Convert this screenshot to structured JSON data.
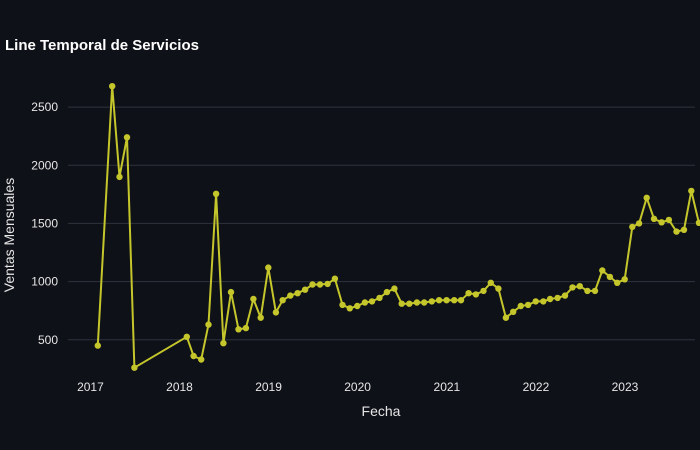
{
  "colors": {
    "background": "#0e1118",
    "text": "#ffffff",
    "tick_text": "#e6e6e6",
    "grid": "#2e333d",
    "series": "#c4c62b"
  },
  "chart_data": {
    "type": "line",
    "title": "Line Temporal de Servicios",
    "xlabel": "Fecha",
    "ylabel": "Ventas Mensuales",
    "grid": true,
    "x_ticks": [
      "2017",
      "2018",
      "2019",
      "2020",
      "2021",
      "2022",
      "2023"
    ],
    "y_ticks": [
      500,
      1000,
      1500,
      2000,
      2500
    ],
    "xlim": [
      "2016-10-01",
      "2023-10-15"
    ],
    "ylim": [
      240,
      2690
    ],
    "series": [
      {
        "points": [
          [
            "2017-01-31",
            450
          ],
          [
            "2017-03-31",
            2680
          ],
          [
            "2017-04-30",
            1900
          ],
          [
            "2017-05-31",
            2240
          ],
          [
            "2017-06-30",
            260
          ],
          [
            "2018-01-31",
            525
          ],
          [
            "2018-02-28",
            360
          ],
          [
            "2018-03-31",
            330
          ],
          [
            "2018-04-30",
            630
          ],
          [
            "2018-05-31",
            1755
          ],
          [
            "2018-06-30",
            470
          ],
          [
            "2018-07-31",
            910
          ],
          [
            "2018-08-31",
            590
          ],
          [
            "2018-09-30",
            600
          ],
          [
            "2018-10-31",
            850
          ],
          [
            "2018-11-30",
            690
          ],
          [
            "2018-12-31",
            1120
          ],
          [
            "2019-01-31",
            735
          ],
          [
            "2019-02-28",
            840
          ],
          [
            "2019-03-31",
            880
          ],
          [
            "2019-04-30",
            900
          ],
          [
            "2019-05-31",
            930
          ],
          [
            "2019-06-30",
            975
          ],
          [
            "2019-07-31",
            975
          ],
          [
            "2019-08-31",
            980
          ],
          [
            "2019-09-30",
            1025
          ],
          [
            "2019-10-31",
            800
          ],
          [
            "2019-11-30",
            770
          ],
          [
            "2019-12-31",
            790
          ],
          [
            "2020-01-31",
            820
          ],
          [
            "2020-02-29",
            830
          ],
          [
            "2020-03-31",
            860
          ],
          [
            "2020-04-30",
            910
          ],
          [
            "2020-05-31",
            940
          ],
          [
            "2020-06-30",
            810
          ],
          [
            "2020-07-31",
            810
          ],
          [
            "2020-08-31",
            820
          ],
          [
            "2020-09-30",
            820
          ],
          [
            "2020-10-31",
            830
          ],
          [
            "2020-11-30",
            840
          ],
          [
            "2020-12-31",
            840
          ],
          [
            "2021-01-31",
            840
          ],
          [
            "2021-02-28",
            840
          ],
          [
            "2021-03-31",
            900
          ],
          [
            "2021-04-30",
            890
          ],
          [
            "2021-05-31",
            920
          ],
          [
            "2021-06-30",
            990
          ],
          [
            "2021-07-31",
            940
          ],
          [
            "2021-08-31",
            690
          ],
          [
            "2021-09-30",
            740
          ],
          [
            "2021-10-31",
            790
          ],
          [
            "2021-11-30",
            800
          ],
          [
            "2021-12-31",
            830
          ],
          [
            "2022-01-31",
            830
          ],
          [
            "2022-02-28",
            850
          ],
          [
            "2022-03-31",
            860
          ],
          [
            "2022-04-30",
            880
          ],
          [
            "2022-05-31",
            950
          ],
          [
            "2022-06-30",
            960
          ],
          [
            "2022-07-31",
            920
          ],
          [
            "2022-08-31",
            920
          ],
          [
            "2022-09-30",
            1095
          ],
          [
            "2022-10-31",
            1040
          ],
          [
            "2022-11-30",
            990
          ],
          [
            "2022-12-31",
            1020
          ],
          [
            "2023-01-31",
            1470
          ],
          [
            "2023-02-28",
            1500
          ],
          [
            "2023-03-31",
            1720
          ],
          [
            "2023-04-30",
            1540
          ],
          [
            "2023-05-31",
            1510
          ],
          [
            "2023-06-30",
            1530
          ],
          [
            "2023-07-31",
            1430
          ],
          [
            "2023-08-31",
            1445
          ],
          [
            "2023-09-30",
            1780
          ],
          [
            "2023-10-31",
            1505
          ]
        ]
      }
    ]
  }
}
